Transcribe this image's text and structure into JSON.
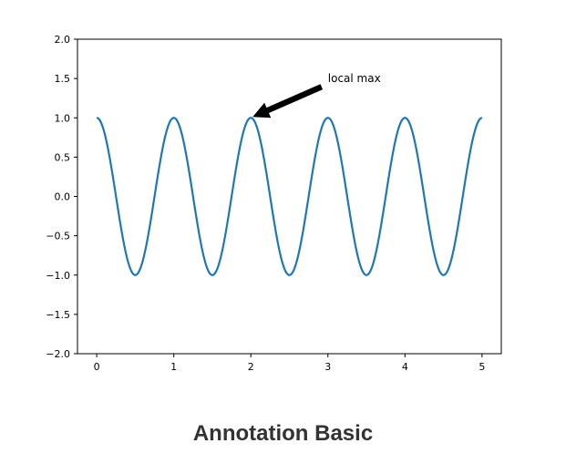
{
  "caption": "Annotation Basic",
  "chart_data": {
    "type": "line",
    "title": "",
    "xlabel": "",
    "ylabel": "",
    "xlim": [
      -0.25,
      5.25
    ],
    "ylim": [
      -2.0,
      2.0
    ],
    "xticks": [
      0,
      1,
      2,
      3,
      4,
      5
    ],
    "xtick_labels": [
      "0",
      "1",
      "2",
      "3",
      "4",
      "5"
    ],
    "yticks": [
      2.0,
      1.5,
      1.0,
      0.5,
      0.0,
      -0.5,
      -1.0,
      -1.5,
      -2.0
    ],
    "ytick_labels": [
      "2.0",
      "1.5",
      "1.0",
      "0.5",
      "0.0",
      "−0.5",
      "−1.0",
      "−1.5",
      "−2.0"
    ],
    "grid": false,
    "series": [
      {
        "function": "cos(2*pi*x)",
        "x_range": [
          0,
          5
        ],
        "color": "#1f77b4"
      }
    ],
    "annotations": [
      {
        "text": "local max",
        "point": [
          2,
          1
        ],
        "text_position": [
          3,
          1.5
        ],
        "arrow_color": "#000000"
      }
    ]
  }
}
